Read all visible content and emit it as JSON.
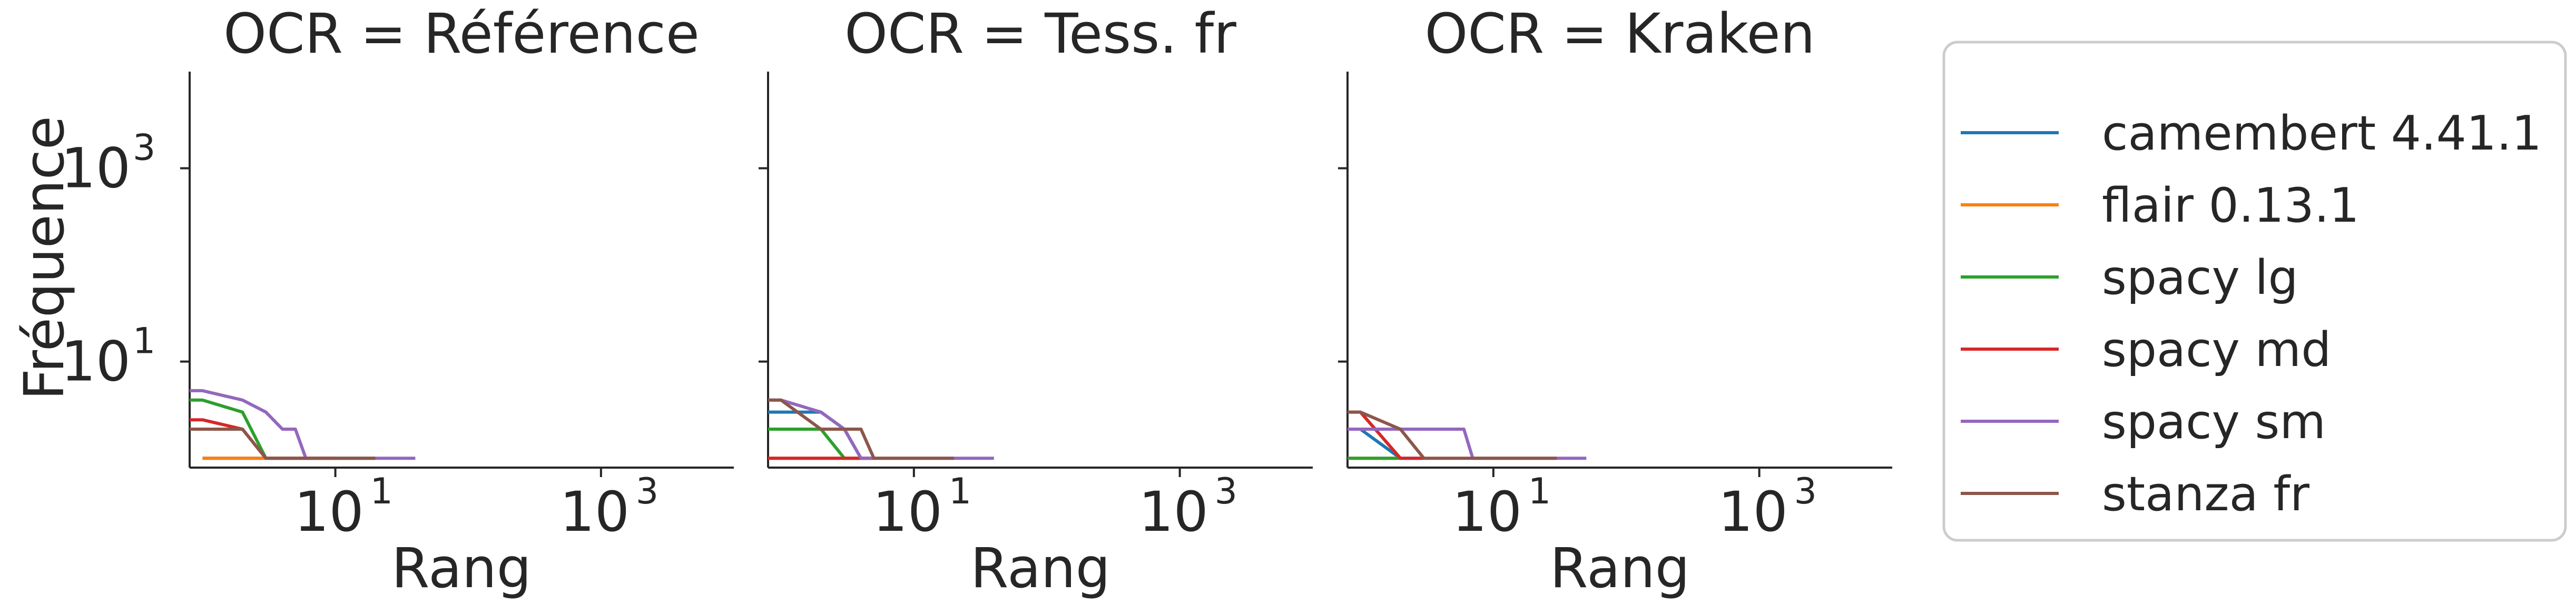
{
  "figure": {
    "ylabel": "Fréquence"
  },
  "chart_data": [
    {
      "type": "line",
      "title": "OCR = Référence",
      "xlabel": "Rang",
      "ylabel": "Fréquence",
      "xscale": "log",
      "yscale": "log",
      "xlim": [
        0.8,
        10000
      ],
      "ylim": [
        0.8,
        10000
      ],
      "x_ticks": [
        "10",
        "10"
      ],
      "x_tick_exponents": [
        "1",
        "3"
      ],
      "y_ticks": [
        "10",
        "10"
      ],
      "y_tick_exponents": [
        "1",
        "3"
      ],
      "grid": false,
      "series": [
        {
          "name": "camembert 4.41.1",
          "color": "#1f77b4",
          "points": [
            [
              1,
              1
            ],
            [
              2,
              1
            ],
            [
              3,
              1
            ]
          ]
        },
        {
          "name": "flair 0.13.1",
          "color": "#ff7f0e",
          "points": [
            [
              1,
              1
            ],
            [
              2,
              1
            ],
            [
              3,
              1
            ]
          ]
        },
        {
          "name": "spacy lg",
          "color": "#2ca02c",
          "points": [
            [
              0.8,
              4
            ],
            [
              1,
              4
            ],
            [
              2,
              3
            ],
            [
              3,
              1
            ],
            [
              4,
              1
            ],
            [
              5,
              1
            ],
            [
              6,
              1
            ],
            [
              7,
              1
            ],
            [
              8,
              1
            ],
            [
              20,
              1
            ]
          ]
        },
        {
          "name": "spacy md",
          "color": "#d62728",
          "points": [
            [
              0.8,
              2.5
            ],
            [
              1,
              2.5
            ],
            [
              2,
              2
            ],
            [
              3,
              1
            ],
            [
              4,
              1
            ],
            [
              10,
              1
            ]
          ]
        },
        {
          "name": "spacy sm",
          "color": "#9467bd",
          "points": [
            [
              0.8,
              5
            ],
            [
              1,
              5
            ],
            [
              2,
              4
            ],
            [
              3,
              3
            ],
            [
              4,
              2
            ],
            [
              5,
              2
            ],
            [
              6,
              1
            ],
            [
              10,
              1
            ],
            [
              20,
              1
            ],
            [
              40,
              1
            ]
          ]
        },
        {
          "name": "stanza fr",
          "color": "#8c564b",
          "points": [
            [
              0.8,
              2
            ],
            [
              1,
              2
            ],
            [
              2,
              2
            ],
            [
              3,
              1
            ],
            [
              10,
              1
            ],
            [
              20,
              1
            ]
          ]
        }
      ]
    },
    {
      "type": "line",
      "title": "OCR = Tess. fr",
      "xlabel": "Rang",
      "xscale": "log",
      "yscale": "log",
      "xlim": [
        0.8,
        10000
      ],
      "ylim": [
        0.8,
        10000
      ],
      "x_ticks": [
        "10",
        "10"
      ],
      "x_tick_exponents": [
        "1",
        "3"
      ],
      "grid": false,
      "series": [
        {
          "name": "camembert 4.41.1",
          "color": "#1f77b4",
          "points": [
            [
              0.8,
              3
            ],
            [
              1,
              3
            ],
            [
              2,
              3
            ],
            [
              3,
              2
            ],
            [
              4,
              1
            ],
            [
              5,
              1
            ]
          ]
        },
        {
          "name": "flair 0.13.1",
          "color": "#ff7f0e",
          "points": [
            [
              0.8,
              1
            ],
            [
              1,
              1
            ],
            [
              2,
              1
            ],
            [
              3,
              1
            ],
            [
              4,
              1
            ],
            [
              5,
              1
            ]
          ]
        },
        {
          "name": "spacy lg",
          "color": "#2ca02c",
          "points": [
            [
              0.8,
              2
            ],
            [
              1,
              2
            ],
            [
              2,
              2
            ],
            [
              3,
              1
            ],
            [
              4,
              1
            ],
            [
              5,
              1
            ]
          ]
        },
        {
          "name": "spacy md",
          "color": "#d62728",
          "points": [
            [
              0.8,
              1
            ],
            [
              1,
              1
            ],
            [
              2,
              1
            ],
            [
              3,
              1
            ],
            [
              4,
              1
            ],
            [
              5,
              1
            ]
          ]
        },
        {
          "name": "spacy sm",
          "color": "#9467bd",
          "points": [
            [
              0.8,
              4
            ],
            [
              1,
              4
            ],
            [
              2,
              3
            ],
            [
              3,
              2
            ],
            [
              4,
              1
            ],
            [
              5,
              1
            ],
            [
              10,
              1
            ],
            [
              20,
              1
            ],
            [
              40,
              1
            ]
          ]
        },
        {
          "name": "stanza fr",
          "color": "#8c564b",
          "points": [
            [
              0.8,
              4
            ],
            [
              1,
              4
            ],
            [
              2,
              2
            ],
            [
              3,
              2
            ],
            [
              4,
              2
            ],
            [
              5,
              1
            ],
            [
              10,
              1
            ],
            [
              20,
              1
            ]
          ]
        }
      ]
    },
    {
      "type": "line",
      "title": "OCR = Kraken",
      "xlabel": "Rang",
      "xscale": "log",
      "yscale": "log",
      "xlim": [
        0.8,
        10000
      ],
      "ylim": [
        0.8,
        10000
      ],
      "x_ticks": [
        "10",
        "10"
      ],
      "x_tick_exponents": [
        "1",
        "3"
      ],
      "grid": false,
      "series": [
        {
          "name": "camembert 4.41.1",
          "color": "#1f77b4",
          "points": [
            [
              0.8,
              2
            ],
            [
              1,
              2
            ],
            [
              2,
              1
            ],
            [
              3,
              1
            ]
          ]
        },
        {
          "name": "flair 0.13.1",
          "color": "#ff7f0e",
          "points": [
            [
              0.8,
              1
            ],
            [
              1,
              1
            ],
            [
              2,
              1
            ]
          ]
        },
        {
          "name": "spacy lg",
          "color": "#2ca02c",
          "points": [
            [
              0.8,
              1
            ],
            [
              1,
              1
            ],
            [
              2,
              1
            ]
          ]
        },
        {
          "name": "spacy md",
          "color": "#d62728",
          "points": [
            [
              0.8,
              3
            ],
            [
              1,
              3
            ],
            [
              2,
              1
            ],
            [
              3,
              1
            ]
          ]
        },
        {
          "name": "spacy sm",
          "color": "#9467bd",
          "points": [
            [
              0.8,
              2
            ],
            [
              1,
              2
            ],
            [
              2,
              2
            ],
            [
              3,
              2
            ],
            [
              4,
              2
            ],
            [
              5,
              2
            ],
            [
              6,
              2
            ],
            [
              7,
              1
            ],
            [
              10,
              1
            ],
            [
              20,
              1
            ],
            [
              50,
              1
            ]
          ]
        },
        {
          "name": "stanza fr",
          "color": "#8c564b",
          "points": [
            [
              0.8,
              3
            ],
            [
              1,
              3
            ],
            [
              2,
              2
            ],
            [
              3,
              1
            ],
            [
              10,
              1
            ],
            [
              20,
              1
            ],
            [
              30,
              1
            ]
          ]
        }
      ]
    }
  ],
  "legend": {
    "placement": "right",
    "entries": [
      {
        "label": "camembert 4.41.1",
        "color": "#1f77b4"
      },
      {
        "label": "flair 0.13.1",
        "color": "#ff7f0e"
      },
      {
        "label": "spacy lg",
        "color": "#2ca02c"
      },
      {
        "label": "spacy md",
        "color": "#d62728"
      },
      {
        "label": "spacy sm",
        "color": "#9467bd"
      },
      {
        "label": "stanza fr",
        "color": "#8c564b"
      }
    ]
  }
}
